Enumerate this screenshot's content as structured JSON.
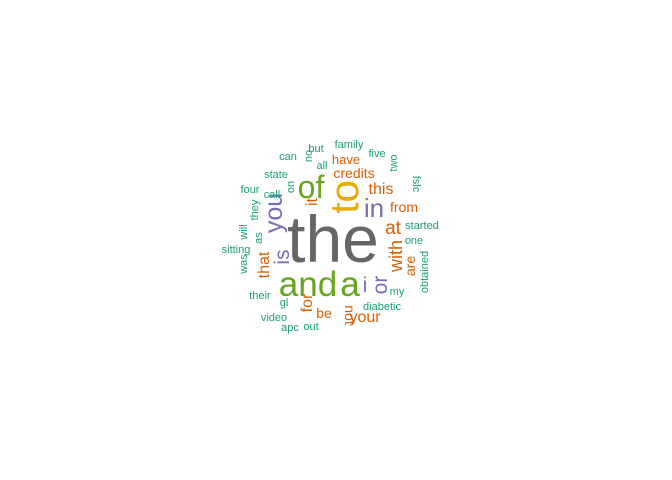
{
  "palette": {
    "grey": "#666666",
    "orange": "#d95f02",
    "green": "#66a61e",
    "gold": "#e6ab02",
    "purple": "#7570b3",
    "teal": "#1b9e77"
  },
  "words": [
    {
      "id": "the",
      "text": "the",
      "color": "grey"
    },
    {
      "id": "to",
      "text": "to",
      "color": "gold"
    },
    {
      "id": "of",
      "text": "of",
      "color": "green"
    },
    {
      "id": "and",
      "text": "and",
      "color": "green"
    },
    {
      "id": "a",
      "text": "a",
      "color": "green"
    },
    {
      "id": "in",
      "text": "in",
      "color": "purple"
    },
    {
      "id": "you",
      "text": "you",
      "color": "purple"
    },
    {
      "id": "is",
      "text": "is",
      "color": "purple"
    },
    {
      "id": "i",
      "text": "i",
      "color": "purple"
    },
    {
      "id": "or",
      "text": "or",
      "color": "purple"
    },
    {
      "id": "it",
      "text": "it",
      "color": "orange"
    },
    {
      "id": "this",
      "text": "this",
      "color": "orange"
    },
    {
      "id": "credits",
      "text": "credits",
      "color": "orange"
    },
    {
      "id": "have",
      "text": "have",
      "color": "orange"
    },
    {
      "id": "at",
      "text": "at",
      "color": "orange"
    },
    {
      "id": "from",
      "text": "from",
      "color": "orange"
    },
    {
      "id": "with",
      "text": "with",
      "color": "orange"
    },
    {
      "id": "are",
      "text": "are",
      "color": "orange"
    },
    {
      "id": "that",
      "text": "that",
      "color": "orange"
    },
    {
      "id": "for",
      "text": "for",
      "color": "orange"
    },
    {
      "id": "be",
      "text": "be",
      "color": "orange"
    },
    {
      "id": "not",
      "text": "not",
      "color": "orange"
    },
    {
      "id": "your",
      "text": "your",
      "color": "orange"
    },
    {
      "id": "but",
      "text": "but",
      "color": "teal"
    },
    {
      "id": "family",
      "text": "family",
      "color": "teal"
    },
    {
      "id": "five",
      "text": "five",
      "color": "teal"
    },
    {
      "id": "can",
      "text": "can",
      "color": "teal"
    },
    {
      "id": "no",
      "text": "no",
      "color": "teal"
    },
    {
      "id": "all",
      "text": "all",
      "color": "teal"
    },
    {
      "id": "two",
      "text": "two",
      "color": "teal"
    },
    {
      "id": "state",
      "text": "state",
      "color": "teal"
    },
    {
      "id": "on",
      "text": "on",
      "color": "teal"
    },
    {
      "id": "fslc",
      "text": "fslc",
      "color": "teal"
    },
    {
      "id": "call",
      "text": "call",
      "color": "teal"
    },
    {
      "id": "four",
      "text": "four",
      "color": "teal"
    },
    {
      "id": "they",
      "text": "they",
      "color": "teal"
    },
    {
      "id": "started",
      "text": "started",
      "color": "teal"
    },
    {
      "id": "as",
      "text": "as",
      "color": "teal"
    },
    {
      "id": "will",
      "text": "will",
      "color": "teal"
    },
    {
      "id": "one",
      "text": "one",
      "color": "teal"
    },
    {
      "id": "sitting",
      "text": "sitting",
      "color": "teal"
    },
    {
      "id": "was",
      "text": "was",
      "color": "teal"
    },
    {
      "id": "obtained",
      "text": "obtained",
      "color": "teal"
    },
    {
      "id": "their",
      "text": "their",
      "color": "teal"
    },
    {
      "id": "my",
      "text": "my",
      "color": "teal"
    },
    {
      "id": "gl",
      "text": "gl",
      "color": "teal"
    },
    {
      "id": "diabetic",
      "text": "diabetic",
      "color": "teal"
    },
    {
      "id": "video",
      "text": "video",
      "color": "teal"
    },
    {
      "id": "apc",
      "text": "apc",
      "color": "teal"
    },
    {
      "id": "out",
      "text": "out",
      "color": "teal"
    }
  ]
}
